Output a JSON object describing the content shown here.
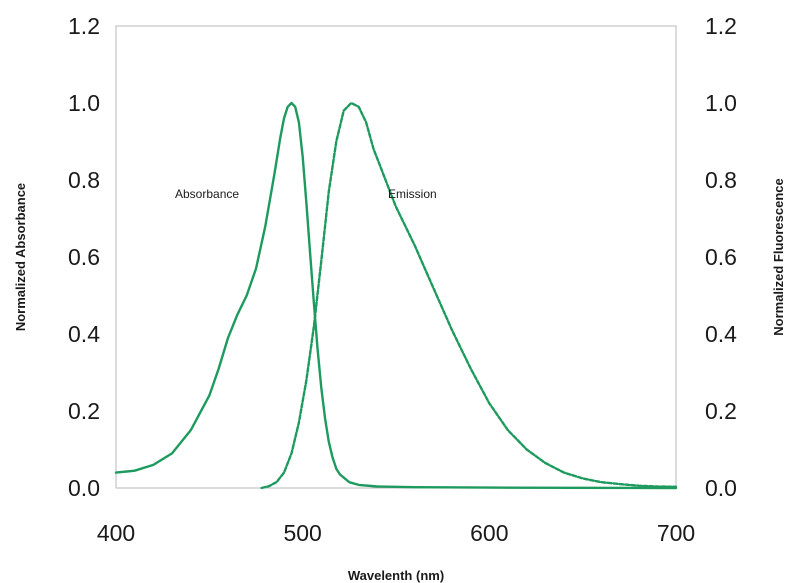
{
  "chart_data": {
    "type": "line",
    "title": "",
    "xlabel": "Wavelenth (nm)",
    "ylabel_left": "Normalized Absorbance",
    "ylabel_right": "Normalized Fluorescence",
    "xlim": [
      400,
      700
    ],
    "ylim": [
      0,
      1.2
    ],
    "x_ticks": [
      "400",
      "500",
      "600",
      "700"
    ],
    "x_tick_values": [
      400,
      500,
      600,
      700
    ],
    "y_ticks": [
      "0.0",
      "0.2",
      "0.4",
      "0.6",
      "0.8",
      "1.0",
      "1.2"
    ],
    "y_tick_values": [
      0,
      0.2,
      0.4,
      0.6,
      0.8,
      1.0,
      1.2
    ],
    "grid": false,
    "legend": "none",
    "line_color": "#1e9a5e",
    "frame_color": "#b9b9b9",
    "annotations": [
      {
        "text": "Absorbance"
      },
      {
        "text": "Emission"
      }
    ],
    "series": [
      {
        "label": "Absorbance",
        "style": "solid",
        "x": [
          400,
          410,
          420,
          430,
          440,
          450,
          455,
          460,
          465,
          470,
          475,
          480,
          485,
          488,
          490,
          492,
          494,
          496,
          498,
          500,
          502,
          504,
          506,
          508,
          510,
          512,
          514,
          516,
          518,
          520,
          525,
          530,
          540,
          560,
          600,
          700
        ],
        "y": [
          0.04,
          0.045,
          0.06,
          0.09,
          0.15,
          0.24,
          0.31,
          0.39,
          0.45,
          0.5,
          0.57,
          0.68,
          0.82,
          0.91,
          0.96,
          0.99,
          1.0,
          0.99,
          0.95,
          0.86,
          0.74,
          0.61,
          0.48,
          0.36,
          0.26,
          0.18,
          0.12,
          0.08,
          0.05,
          0.035,
          0.015,
          0.008,
          0.004,
          0.002,
          0.001,
          0.0
        ]
      },
      {
        "label": "Emission",
        "style": "dashed",
        "x": [
          478,
          482,
          486,
          490,
          494,
          498,
          502,
          506,
          510,
          514,
          518,
          522,
          526,
          530,
          534,
          538,
          542,
          546,
          550,
          560,
          570,
          580,
          590,
          600,
          610,
          620,
          630,
          640,
          650,
          660,
          670,
          680,
          690,
          700
        ],
        "y": [
          0.0,
          0.005,
          0.015,
          0.04,
          0.09,
          0.17,
          0.28,
          0.42,
          0.59,
          0.77,
          0.9,
          0.98,
          1.0,
          0.99,
          0.95,
          0.88,
          0.83,
          0.78,
          0.73,
          0.63,
          0.52,
          0.41,
          0.31,
          0.22,
          0.15,
          0.1,
          0.065,
          0.04,
          0.025,
          0.015,
          0.01,
          0.006,
          0.004,
          0.003
        ]
      }
    ]
  }
}
